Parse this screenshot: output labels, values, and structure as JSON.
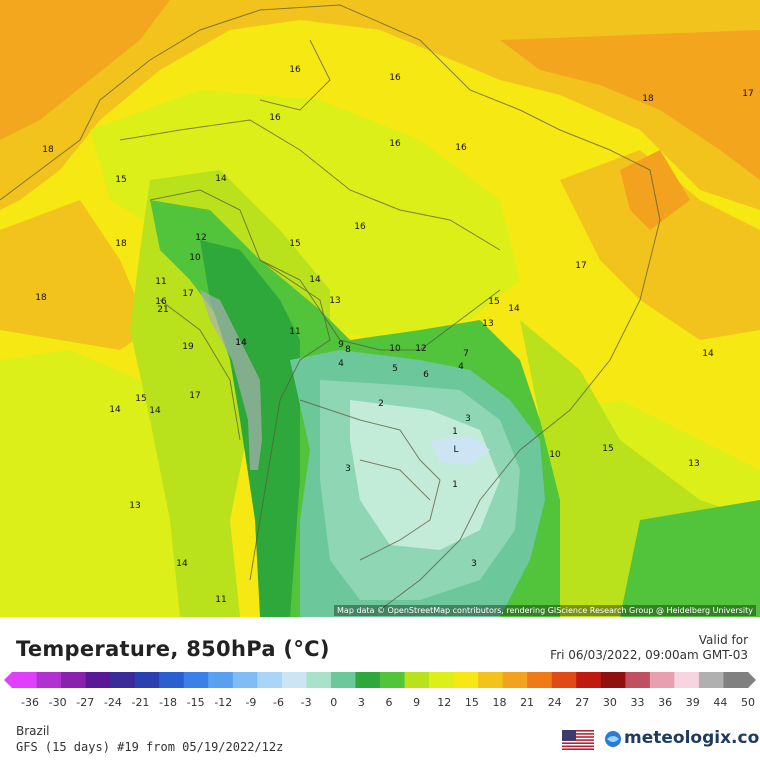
{
  "map": {
    "attribution": "Map data © OpenStreetMap contributors, rendering GIScience Research Group @ Heidelberg University",
    "contour_labels": [
      "16",
      "16",
      "18",
      "17",
      "16",
      "16",
      "16",
      "18",
      "15",
      "14",
      "12",
      "10",
      "15",
      "14",
      "16",
      "17",
      "18",
      "11",
      "18",
      "17",
      "13",
      "15",
      "14",
      "13",
      "16",
      "21",
      "14",
      "11",
      "9",
      "8",
      "10",
      "12",
      "7",
      "4",
      "5",
      "6",
      "4",
      "19",
      "14",
      "2",
      "3",
      "1",
      "17",
      "15",
      "14",
      "14",
      "10",
      "15",
      "14",
      "13",
      "3",
      "1",
      "13",
      "14",
      "11",
      "3",
      "L"
    ],
    "colors": {
      "orange": "#f2a21e",
      "gold": "#f3c31d",
      "yellow": "#f6e813",
      "lime": "#dcef18",
      "yellow_green": "#b9e21c",
      "green": "#52c43c",
      "dark_green": "#2ea83a",
      "teal": "#6cc79a",
      "mint": "#8fd6b5",
      "pale_mint": "#c3ecd8",
      "ice": "#cde4f4"
    }
  },
  "legend": {
    "title": "Temperature, 850hPa (°C)",
    "valid_label": "Valid for",
    "valid_value": "Fri 06/03/2022, 09:00am GMT-03",
    "ticks": [
      "-36",
      "-30",
      "-27",
      "-24",
      "-21",
      "-18",
      "-15",
      "-12",
      "-9",
      "-6",
      "-3",
      "0",
      "3",
      "6",
      "9",
      "12",
      "15",
      "18",
      "21",
      "24",
      "27",
      "30",
      "33",
      "36",
      "39",
      "44",
      "50"
    ],
    "colors": [
      "#e040fb",
      "#b030d0",
      "#8a20b0",
      "#5a1898",
      "#3a2a9a",
      "#2a3fb0",
      "#2a5fd0",
      "#3a80e8",
      "#5aa0f0",
      "#80bdf5",
      "#a8d5f8",
      "#cde4f4",
      "#a8e2c8",
      "#6cc79a",
      "#2ea83a",
      "#52c43c",
      "#b9e21c",
      "#dcef18",
      "#f6e813",
      "#f3c31d",
      "#f2a21e",
      "#f07a18",
      "#e04a14",
      "#c01a10",
      "#901010",
      "#c05060",
      "#e8a0b0",
      "#f5d5e0",
      "#b0b0b0",
      "#808080"
    ]
  },
  "footer": {
    "region": "Brazil",
    "model": "GFS (15 days) #19 from  05/19/2022/12z",
    "brand": "meteologix.com",
    "flag_icon": "us-flag-icon"
  }
}
